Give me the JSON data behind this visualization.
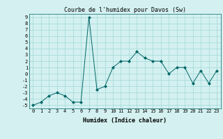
{
  "x": [
    0,
    1,
    2,
    3,
    4,
    5,
    6,
    7,
    8,
    9,
    10,
    11,
    12,
    13,
    14,
    15,
    16,
    17,
    18,
    19,
    20,
    21,
    22,
    23
  ],
  "y": [
    -5,
    -4.5,
    -3.5,
    -3,
    -3.5,
    -4.5,
    -4.5,
    9,
    -2.5,
    -2,
    1,
    2,
    2,
    3.5,
    2.5,
    2,
    2,
    0,
    1,
    1,
    -1.5,
    0.5,
    -1.5,
    0.5
  ],
  "title": "Courbe de l'humidex pour Davos (Sw)",
  "xlabel": "Humidex (Indice chaleur)",
  "ylabel": "",
  "xlim": [
    -0.5,
    23.5
  ],
  "ylim": [
    -5.5,
    9.5
  ],
  "yticks": [
    9,
    8,
    7,
    6,
    5,
    4,
    3,
    2,
    1,
    0,
    -1,
    -2,
    -3,
    -4,
    -5
  ],
  "xticks": [
    0,
    1,
    2,
    3,
    4,
    5,
    6,
    7,
    8,
    9,
    10,
    11,
    12,
    13,
    14,
    15,
    16,
    17,
    18,
    19,
    20,
    21,
    22,
    23
  ],
  "line_color": "#006666",
  "marker": "D",
  "marker_size": 2,
  "bg_color": "#d4f0f0",
  "grid_color": "#a0d8d8",
  "title_fontsize": 6,
  "label_fontsize": 6,
  "tick_fontsize": 5
}
